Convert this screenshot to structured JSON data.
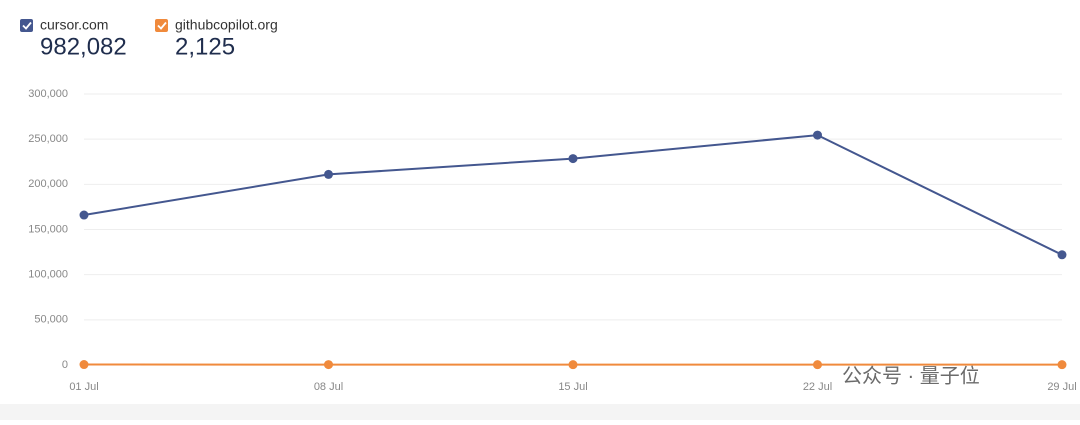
{
  "chart_data": {
    "type": "line",
    "categories": [
      "01 Jul",
      "08 Jul",
      "15 Jul",
      "22 Jul",
      "29 Jul"
    ],
    "series": [
      {
        "name": "cursor.com",
        "color": "#44578f",
        "total": {
          "value": 982082,
          "label": "982,082"
        },
        "values": [
          166000,
          211000,
          228500,
          254500,
          122000
        ]
      },
      {
        "name": "githubcopilot.org",
        "color": "#f08a3c",
        "total": {
          "value": 2125,
          "label": "2,125"
        },
        "values": [
          500,
          450,
          400,
          400,
          375
        ]
      }
    ],
    "ylim": [
      0,
      300000
    ],
    "yticks": [
      0,
      {
        "value": 50000,
        "label": "50,000"
      },
      {
        "value": 100000,
        "label": "100,000"
      },
      {
        "value": 150000,
        "label": "150,000"
      },
      {
        "value": 200000,
        "label": "200,000"
      },
      {
        "value": 250000,
        "label": "250,000"
      },
      {
        "value": 300000,
        "label": "300,000"
      }
    ],
    "grid": true,
    "watermark": "公众号 · 量子位"
  }
}
